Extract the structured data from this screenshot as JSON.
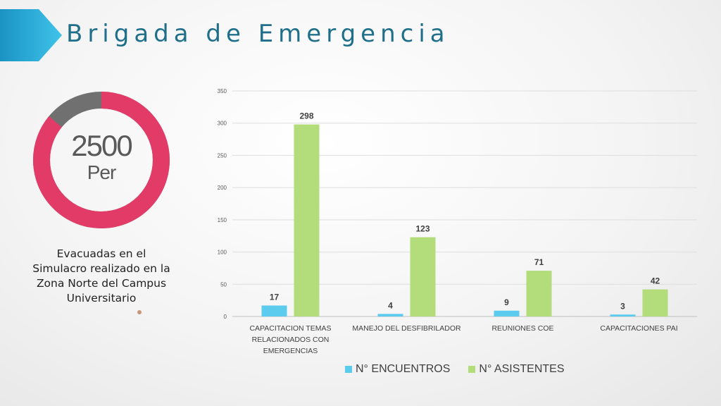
{
  "slide": {
    "title": "Brigada de Emergencia"
  },
  "stat": {
    "value": "2500",
    "unit": "Per",
    "caption_lines": [
      "Evacuadas en el",
      "Simulacro realizado en la",
      "Zona Norte del Campus",
      "Universitario"
    ],
    "donut_fraction": 0.86,
    "colors": {
      "main": "#e33b67",
      "rest": "#707070"
    }
  },
  "chart_data": {
    "type": "bar",
    "categories": [
      [
        "CAPACITACION TEMAS",
        "RELACIONADOS CON",
        "EMERGENCIAS"
      ],
      [
        "MANEJO DEL DESFIBRILADOR"
      ],
      [
        "REUNIONES COE"
      ],
      [
        "CAPACITACIONES PAI"
      ]
    ],
    "series": [
      {
        "name": "N° ENCUENTROS",
        "values": [
          17,
          4,
          9,
          3
        ],
        "color": "#5bcbee"
      },
      {
        "name": "N° ASISTENTES",
        "values": [
          298,
          123,
          71,
          42
        ],
        "color": "#b3dd7b"
      }
    ],
    "ylim": [
      0,
      350
    ],
    "yticks": [
      0,
      50,
      100,
      150,
      200,
      250,
      300,
      350
    ],
    "grid": true,
    "legend_position": "bottom"
  }
}
